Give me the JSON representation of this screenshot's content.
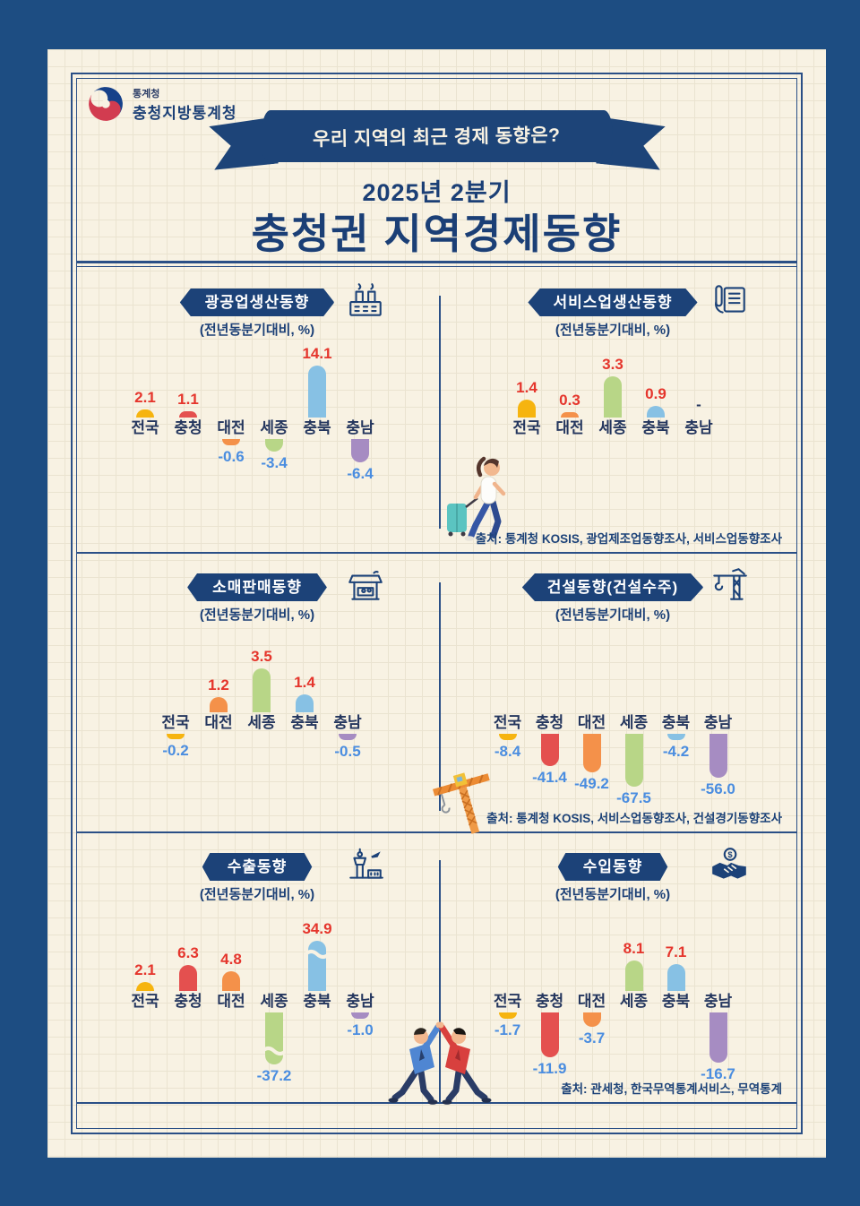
{
  "header": {
    "agency_small": "통계청",
    "agency_name": "충청지방통계청",
    "ribbon_text": "우리 지역의 최근 경제 동향은?",
    "period": "2025년 2분기",
    "main_title": "충청권 지역경제동향"
  },
  "region_colors": {
    "전국": "#f6b40f",
    "충청": "#e4504f",
    "대전": "#f4914a",
    "세종": "#b8d687",
    "충북": "#87c1e4",
    "충남": "#a68cc2"
  },
  "value_colors": {
    "positive": "#e5352c",
    "negative": "#4a8de0",
    "none": "#24365e"
  },
  "sections": [
    {
      "source": "출처: 통계청 KOSIS, 광업제조업동향조사, 서비스업동향조사",
      "illustration": "traveler-illustration"
    },
    {
      "source": "출처: 통계청 KOSIS, 서비스업동향조사, 건설경기동향조사",
      "illustration": "tower-crane-illustration"
    },
    {
      "source": "출처: 관세청, 한국무역통계서비스, 무역통계",
      "illustration": "high-five-illustration"
    }
  ],
  "chart_data": [
    {
      "type": "bar",
      "title": "광공업생산동향",
      "subtitle": "(전년동분기대비, %)",
      "icon": "factory-icon",
      "categories": [
        "전국",
        "충청",
        "대전",
        "세종",
        "충북",
        "충남"
      ],
      "values": [
        2.1,
        1.1,
        -0.6,
        -3.4,
        14.1,
        -6.4
      ],
      "value_labels": [
        "2.1",
        "1.1",
        "-0.6",
        "-3.4",
        "14.1",
        "-6.4"
      ],
      "ylabel": "전년동분기대비 %",
      "legend": "none",
      "grid": "off"
    },
    {
      "type": "bar",
      "title": "서비스업생산동향",
      "subtitle": "(전년동분기대비, %)",
      "icon": "fax-phone-icon",
      "categories": [
        "전국",
        "대전",
        "세종",
        "충북",
        "충남"
      ],
      "values": [
        1.4,
        0.3,
        3.3,
        0.9,
        null
      ],
      "value_labels": [
        "1.4",
        "0.3",
        "3.3",
        "0.9",
        "-"
      ],
      "ylabel": "전년동분기대비 %",
      "legend": "none",
      "grid": "off"
    },
    {
      "type": "bar",
      "title": "소매판매동향",
      "subtitle": "(전년동분기대비, %)",
      "icon": "market-stall-icon",
      "categories": [
        "전국",
        "대전",
        "세종",
        "충북",
        "충남"
      ],
      "values": [
        -0.2,
        1.2,
        3.5,
        1.4,
        -0.5
      ],
      "value_labels": [
        "-0.2",
        "1.2",
        "3.5",
        "1.4",
        "-0.5"
      ],
      "ylabel": "전년동분기대비 %",
      "legend": "none",
      "grid": "off"
    },
    {
      "type": "bar",
      "title": "건설동향(건설수주)",
      "subtitle": "(전년동분기대비, %)",
      "icon": "crane-icon",
      "categories": [
        "전국",
        "충청",
        "대전",
        "세종",
        "충북",
        "충남"
      ],
      "values": [
        -8.4,
        -41.4,
        -49.2,
        -67.5,
        -4.2,
        -56.0
      ],
      "value_labels": [
        "-8.4",
        "-41.4",
        "-49.2",
        "-67.5",
        "-4.2",
        "-56.0"
      ],
      "ylabel": "전년동분기대비 %",
      "legend": "none",
      "grid": "off"
    },
    {
      "type": "bar",
      "title": "수출동향",
      "subtitle": "(전년동분기대비, %)",
      "icon": "airport-icon",
      "categories": [
        "전국",
        "충청",
        "대전",
        "세종",
        "충북",
        "충남"
      ],
      "values": [
        2.1,
        6.3,
        4.8,
        -37.2,
        34.9,
        -1.0
      ],
      "value_labels": [
        "2.1",
        "6.3",
        "4.8",
        "-37.2",
        "34.9",
        "-1.0"
      ],
      "truncated": [
        false,
        false,
        false,
        true,
        true,
        false
      ],
      "ylabel": "전년동분기대비 %",
      "legend": "none",
      "grid": "off"
    },
    {
      "type": "bar",
      "title": "수입동향",
      "subtitle": "(전년동분기대비, %)",
      "icon": "handshake-icon",
      "categories": [
        "전국",
        "충청",
        "대전",
        "세종",
        "충북",
        "충남"
      ],
      "values": [
        -1.7,
        -11.9,
        -3.7,
        8.1,
        7.1,
        -16.7
      ],
      "value_labels": [
        "-1.7",
        "-11.9",
        "-3.7",
        "8.1",
        "7.1",
        "-16.7"
      ],
      "ylabel": "전년동분기대비 %",
      "legend": "none",
      "grid": "off"
    }
  ]
}
